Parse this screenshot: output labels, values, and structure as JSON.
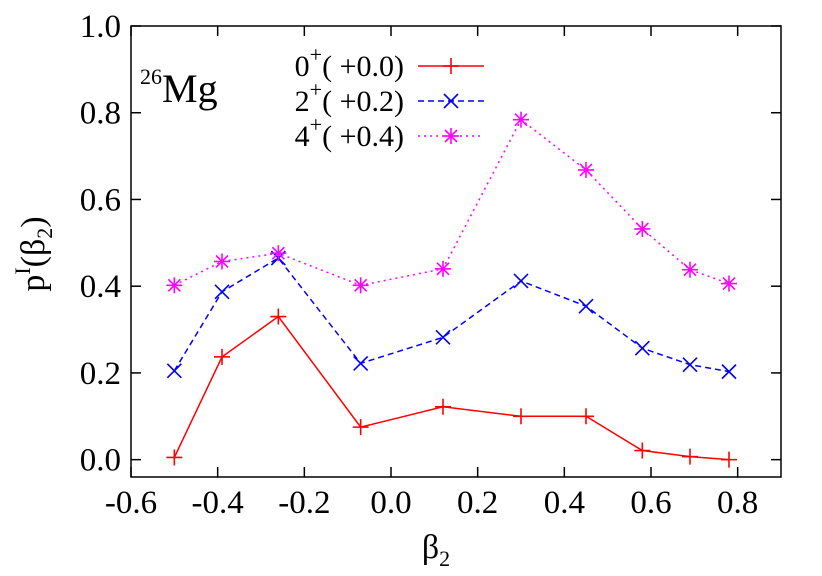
{
  "chart_data": {
    "type": "line",
    "nucleus": {
      "mass": "26",
      "symbol": "Mg"
    },
    "xlabel": {
      "base": "β",
      "sub": "2"
    },
    "ylabel": {
      "base": "p",
      "sup": "I",
      "arg_open": "(β",
      "arg_sub": "2",
      "arg_close": ")"
    },
    "xlim": [
      -0.6,
      0.9
    ],
    "ylim": [
      -0.04,
      1.0
    ],
    "xticks": [
      -0.6,
      -0.4,
      -0.2,
      0.0,
      0.2,
      0.4,
      0.6,
      0.8
    ],
    "xtick_labels": [
      "-0.6",
      "-0.4",
      "-0.2",
      "0.0",
      "0.2",
      "0.4",
      "0.6",
      "0.8"
    ],
    "yticks": [
      0.0,
      0.2,
      0.4,
      0.6,
      0.8,
      1.0
    ],
    "ytick_labels": [
      "0.0",
      "0.2",
      "0.4",
      "0.6",
      "0.8",
      "1.0"
    ],
    "legend_position": "top-left",
    "series": [
      {
        "name": "0",
        "name_sup": "+",
        "name_suffix": "( +0.0)",
        "color": "#ff0000",
        "dash": "solid",
        "marker": "plus",
        "x": [
          -0.5,
          -0.39,
          -0.26,
          -0.07,
          0.12,
          0.3,
          0.45,
          0.58,
          0.69,
          0.78
        ],
        "y": [
          0.005,
          0.237,
          0.33,
          0.075,
          0.122,
          0.1,
          0.1,
          0.021,
          0.007,
          0.0
        ]
      },
      {
        "name": "2",
        "name_sup": "+",
        "name_suffix": "( +0.2)",
        "color": "#0000ff",
        "dash": "dashed",
        "marker": "cross",
        "x": [
          -0.5,
          -0.39,
          -0.26,
          -0.07,
          0.12,
          0.3,
          0.45,
          0.58,
          0.69,
          0.78
        ],
        "y": [
          0.205,
          0.387,
          0.465,
          0.222,
          0.282,
          0.412,
          0.354,
          0.257,
          0.219,
          0.203
        ]
      },
      {
        "name": "4",
        "name_sup": "+",
        "name_suffix": "( +0.4)",
        "color": "#ff00ff",
        "dash": "dotted",
        "marker": "star",
        "x": [
          -0.5,
          -0.39,
          -0.26,
          -0.07,
          0.12,
          0.3,
          0.45,
          0.58,
          0.69,
          0.78
        ],
        "y": [
          0.402,
          0.457,
          0.476,
          0.402,
          0.44,
          0.784,
          0.668,
          0.532,
          0.438,
          0.406
        ]
      }
    ]
  }
}
